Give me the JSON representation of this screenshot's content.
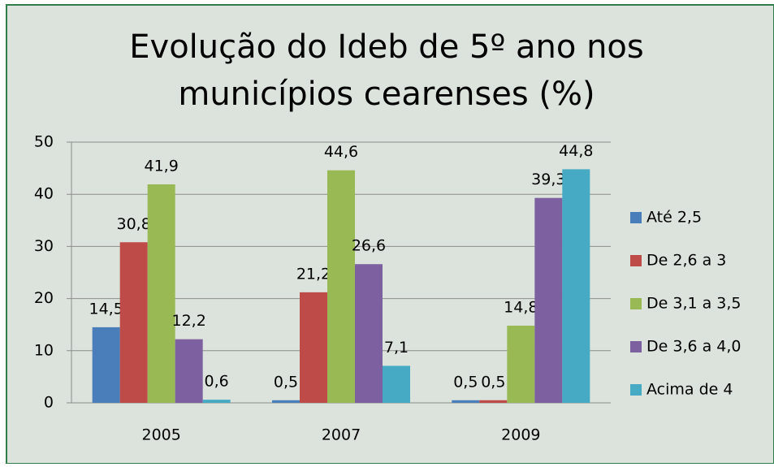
{
  "chart_data": {
    "type": "bar",
    "title": [
      "Evolução do Ideb de 5º ano nos",
      "municípios cearenses (%)"
    ],
    "categories": [
      "2005",
      "2007",
      "2009"
    ],
    "series": [
      {
        "name": "Até 2,5",
        "color": "#4a7ebb",
        "values": [
          14.5,
          0.5,
          0.5
        ],
        "value_labels": [
          "14,5",
          "0,5",
          "0,5"
        ]
      },
      {
        "name": "De 2,6 a 3",
        "color": "#be4b48",
        "values": [
          30.8,
          21.2,
          0.5
        ],
        "value_labels": [
          "30,8",
          "21,2",
          "0,5"
        ]
      },
      {
        "name": "De 3,1 a 3,5",
        "color": "#98b954",
        "values": [
          41.9,
          44.6,
          14.8
        ],
        "value_labels": [
          "41,9",
          "44,6",
          "14,8"
        ]
      },
      {
        "name": "De 3,6 a 4,0",
        "color": "#7d60a0",
        "values": [
          12.2,
          26.6,
          39.3
        ],
        "value_labels": [
          "12,2",
          "26,6",
          "39,3"
        ]
      },
      {
        "name": "Acima de 4",
        "color": "#46aac5",
        "values": [
          0.6,
          7.1,
          44.8
        ],
        "value_labels": [
          "0,6",
          "7,1",
          "44,8"
        ]
      }
    ],
    "ylim": [
      0,
      50
    ],
    "yticks": [
      0,
      10,
      20,
      30,
      40,
      50
    ],
    "grid": true,
    "legend": "right"
  }
}
